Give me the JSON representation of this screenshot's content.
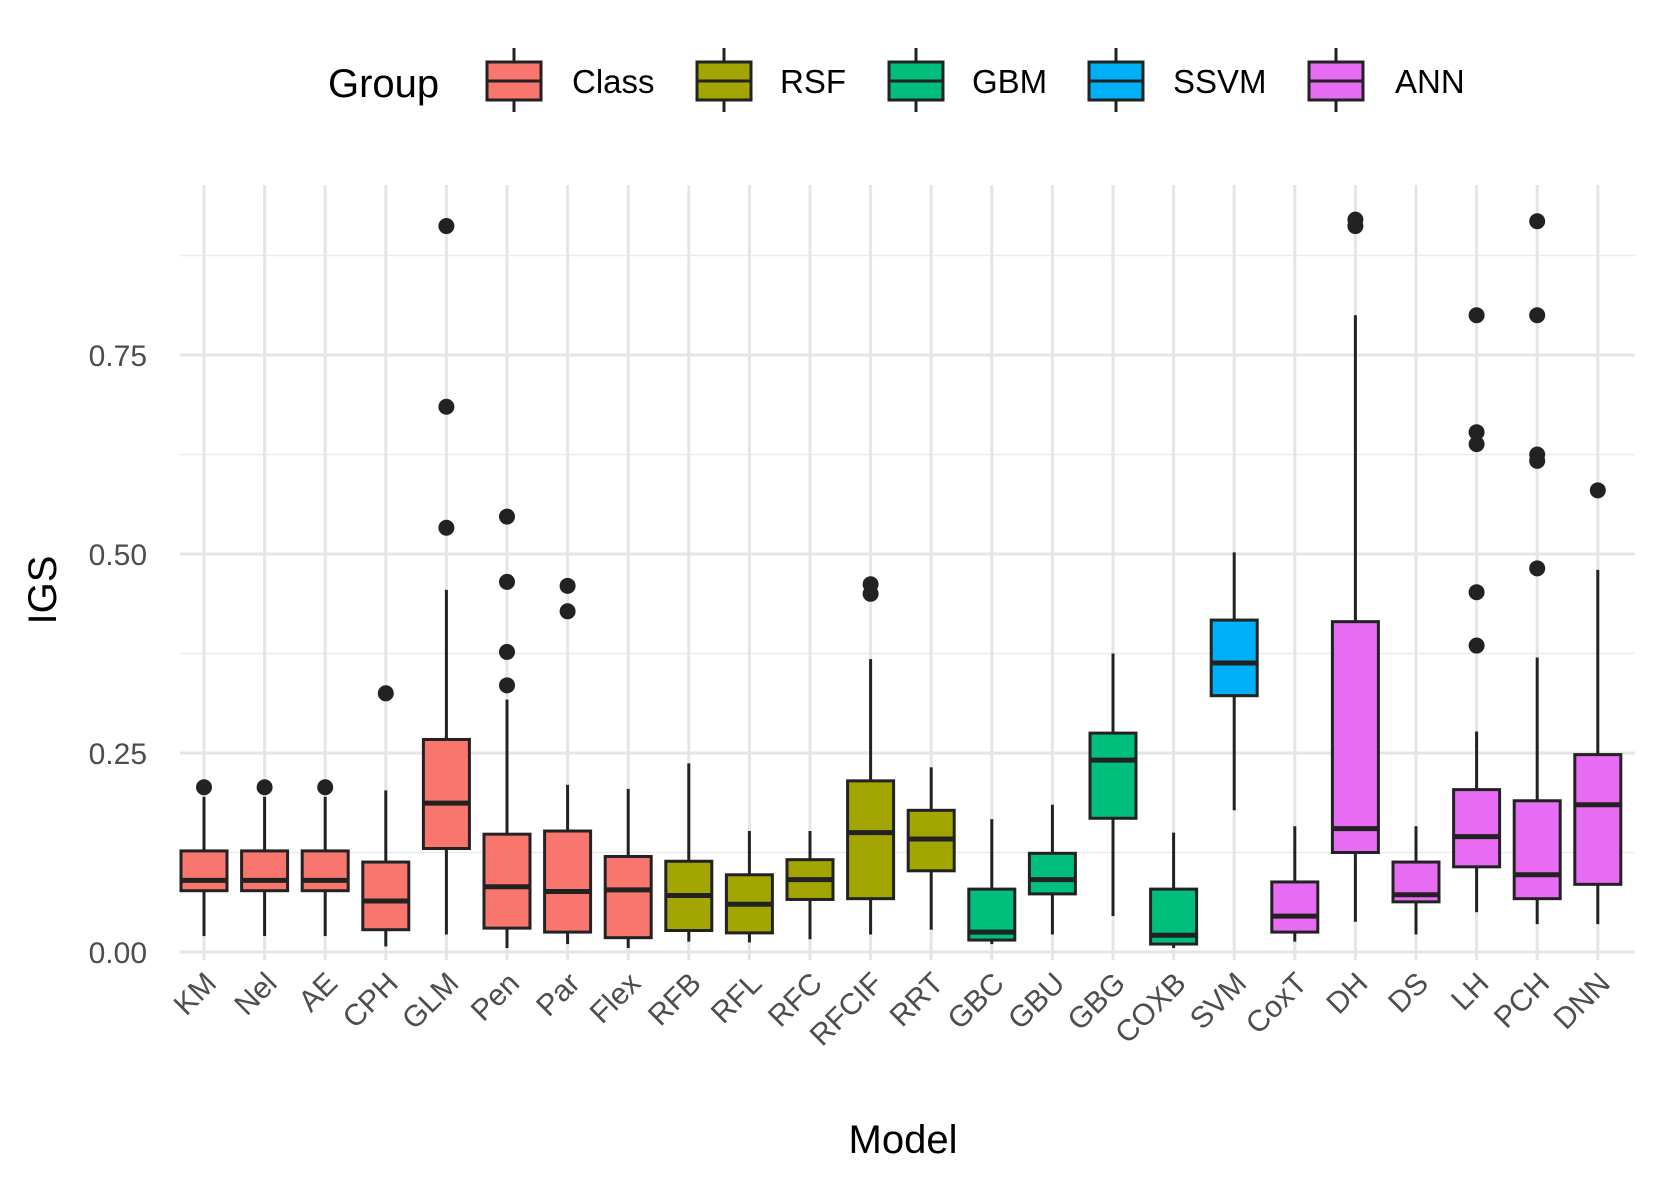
{
  "chart_data": {
    "type": "boxplot",
    "xlabel": "Model",
    "ylabel": "IGS",
    "ylim": [
      -0.02,
      0.96
    ],
    "yticks": [
      "0.00",
      "0.25",
      "0.50",
      "0.75"
    ],
    "ytick_values": [
      0,
      0.25,
      0.5,
      0.75
    ],
    "grid": true,
    "legend": {
      "title": "Group",
      "placement": "top",
      "entries": [
        {
          "name": "Class",
          "color": "#F8766D"
        },
        {
          "name": "RSF",
          "color": "#A3A500"
        },
        {
          "name": "GBM",
          "color": "#00BF7D"
        },
        {
          "name": "SSVM",
          "color": "#00B0F6"
        },
        {
          "name": "ANN",
          "color": "#E76BF3"
        }
      ]
    },
    "categories": [
      "KM",
      "Nel",
      "AE",
      "CPH",
      "GLM",
      "Pen",
      "Par",
      "Flex",
      "RFB",
      "RFL",
      "RFC",
      "RFCIF",
      "RRT",
      "GBC",
      "GBU",
      "GBG",
      "COXB",
      "SVM",
      "CoxT",
      "DH",
      "DS",
      "LH",
      "PCH",
      "DNN"
    ],
    "boxes": [
      {
        "model": "KM",
        "group": "Class",
        "lower": 0.02,
        "q1": 0.077,
        "median": 0.09,
        "q3": 0.127,
        "upper": 0.195,
        "outliers": [
          0.207
        ]
      },
      {
        "model": "Nel",
        "group": "Class",
        "lower": 0.02,
        "q1": 0.077,
        "median": 0.09,
        "q3": 0.127,
        "upper": 0.195,
        "outliers": [
          0.207
        ]
      },
      {
        "model": "AE",
        "group": "Class",
        "lower": 0.02,
        "q1": 0.077,
        "median": 0.09,
        "q3": 0.127,
        "upper": 0.195,
        "outliers": [
          0.207
        ]
      },
      {
        "model": "CPH",
        "group": "Class",
        "lower": 0.007,
        "q1": 0.028,
        "median": 0.064,
        "q3": 0.113,
        "upper": 0.203,
        "outliers": [
          0.325
        ]
      },
      {
        "model": "GLM",
        "group": "Class",
        "lower": 0.022,
        "q1": 0.13,
        "median": 0.187,
        "q3": 0.267,
        "upper": 0.455,
        "outliers": [
          0.533,
          0.685,
          0.912
        ]
      },
      {
        "model": "Pen",
        "group": "Class",
        "lower": 0.005,
        "q1": 0.03,
        "median": 0.082,
        "q3": 0.148,
        "upper": 0.317,
        "outliers": [
          0.335,
          0.377,
          0.465,
          0.547
        ]
      },
      {
        "model": "Par",
        "group": "Class",
        "lower": 0.01,
        "q1": 0.025,
        "median": 0.076,
        "q3": 0.152,
        "upper": 0.21,
        "outliers": [
          0.428,
          0.46
        ]
      },
      {
        "model": "Flex",
        "group": "Class",
        "lower": 0.005,
        "q1": 0.018,
        "median": 0.078,
        "q3": 0.12,
        "upper": 0.205,
        "outliers": []
      },
      {
        "model": "RFB",
        "group": "RSF",
        "lower": 0.013,
        "q1": 0.027,
        "median": 0.071,
        "q3": 0.114,
        "upper": 0.237,
        "outliers": []
      },
      {
        "model": "RFL",
        "group": "RSF",
        "lower": 0.012,
        "q1": 0.024,
        "median": 0.06,
        "q3": 0.097,
        "upper": 0.152,
        "outliers": []
      },
      {
        "model": "RFC",
        "group": "RSF",
        "lower": 0.016,
        "q1": 0.066,
        "median": 0.091,
        "q3": 0.116,
        "upper": 0.152,
        "outliers": []
      },
      {
        "model": "RFCIF",
        "group": "RSF",
        "lower": 0.022,
        "q1": 0.067,
        "median": 0.15,
        "q3": 0.215,
        "upper": 0.368,
        "outliers": [
          0.45,
          0.462
        ]
      },
      {
        "model": "RRT",
        "group": "RSF",
        "lower": 0.028,
        "q1": 0.102,
        "median": 0.142,
        "q3": 0.178,
        "upper": 0.232,
        "outliers": []
      },
      {
        "model": "GBC",
        "group": "GBM",
        "lower": 0.01,
        "q1": 0.015,
        "median": 0.025,
        "q3": 0.079,
        "upper": 0.167,
        "outliers": []
      },
      {
        "model": "GBU",
        "group": "GBM",
        "lower": 0.022,
        "q1": 0.073,
        "median": 0.091,
        "q3": 0.124,
        "upper": 0.185,
        "outliers": []
      },
      {
        "model": "GBG",
        "group": "GBM",
        "lower": 0.045,
        "q1": 0.168,
        "median": 0.241,
        "q3": 0.275,
        "upper": 0.375,
        "outliers": []
      },
      {
        "model": "COXB",
        "group": "GBM",
        "lower": 0.005,
        "q1": 0.01,
        "median": 0.021,
        "q3": 0.079,
        "upper": 0.15,
        "outliers": []
      },
      {
        "model": "SVM",
        "group": "SSVM",
        "lower": 0.178,
        "q1": 0.322,
        "median": 0.363,
        "q3": 0.417,
        "upper": 0.502,
        "outliers": []
      },
      {
        "model": "CoxT",
        "group": "ANN",
        "lower": 0.013,
        "q1": 0.025,
        "median": 0.045,
        "q3": 0.088,
        "upper": 0.158,
        "outliers": []
      },
      {
        "model": "DH",
        "group": "ANN",
        "lower": 0.038,
        "q1": 0.125,
        "median": 0.155,
        "q3": 0.415,
        "upper": 0.8,
        "outliers": [
          0.912,
          0.92
        ]
      },
      {
        "model": "DS",
        "group": "ANN",
        "lower": 0.022,
        "q1": 0.063,
        "median": 0.072,
        "q3": 0.113,
        "upper": 0.158,
        "outliers": []
      },
      {
        "model": "LH",
        "group": "ANN",
        "lower": 0.05,
        "q1": 0.107,
        "median": 0.145,
        "q3": 0.204,
        "upper": 0.277,
        "outliers": [
          0.385,
          0.452,
          0.638,
          0.653,
          0.8
        ]
      },
      {
        "model": "PCH",
        "group": "ANN",
        "lower": 0.035,
        "q1": 0.067,
        "median": 0.097,
        "q3": 0.19,
        "upper": 0.37,
        "outliers": [
          0.482,
          0.617,
          0.625,
          0.8,
          0.918
        ]
      },
      {
        "model": "DNN",
        "group": "ANN",
        "lower": 0.035,
        "q1": 0.085,
        "median": 0.185,
        "q3": 0.248,
        "upper": 0.48,
        "outliers": [
          0.58
        ]
      }
    ]
  }
}
